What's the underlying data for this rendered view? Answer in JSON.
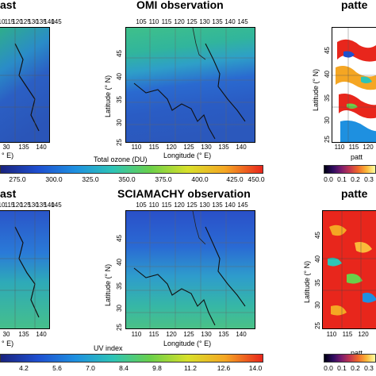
{
  "top_row": {
    "panel_left": {
      "title": "ast",
      "top_ticks": [
        "10",
        "115",
        "120",
        "125",
        "130",
        "135",
        "140",
        "145"
      ],
      "bottom_ticks": [
        "30",
        "135",
        "140"
      ],
      "bottom_label": "° E)"
    },
    "panel_center": {
      "title": "OMI observation",
      "top_ticks": [
        "105",
        "110",
        "115",
        "120",
        "125",
        "130",
        "135",
        "140",
        "145"
      ],
      "bottom_ticks": [
        "110",
        "115",
        "120",
        "125",
        "130",
        "135",
        "140"
      ],
      "left_ticks": [
        "45",
        "40",
        "35",
        "30",
        "25"
      ],
      "xlabel": "Longitude (° E)",
      "ylabel": "Latitude (° N)"
    },
    "panel_right": {
      "title": "patte",
      "bottom_ticks": [
        "110",
        "115",
        "120"
      ],
      "left_ticks": [
        "45",
        "40",
        "35",
        "30",
        "25"
      ],
      "ylabel": "Latitude (° N)",
      "xlabel": "patt"
    },
    "colorbar_label": "Total ozone (DU)",
    "colorbar_ticks": [
      "275.0",
      "300.0",
      "325.0",
      "350.0",
      "375.0",
      "400.0",
      "425.0",
      "450.0"
    ],
    "right_colorbar_ticks": [
      "0.0",
      "0.1",
      "0.2",
      "0.3"
    ]
  },
  "bottom_row": {
    "panel_left": {
      "title": "ast",
      "top_ticks": [
        "10",
        "115",
        "120",
        "125",
        "130",
        "135",
        "140",
        "145"
      ],
      "bottom_ticks": [
        "30",
        "135",
        "140"
      ],
      "bottom_label": "° E)"
    },
    "panel_center": {
      "title": "SCIAMACHY observation",
      "top_ticks": [
        "105",
        "110",
        "115",
        "120",
        "125",
        "130",
        "135",
        "140",
        "145"
      ],
      "bottom_ticks": [
        "110",
        "115",
        "120",
        "125",
        "130",
        "135",
        "140"
      ],
      "left_ticks": [
        "45",
        "40",
        "35",
        "30",
        "25"
      ],
      "xlabel": "Longitude (° E)",
      "ylabel": "Latitude (° N)"
    },
    "panel_right": {
      "title": "patte",
      "bottom_ticks": [
        "110",
        "115",
        "120"
      ],
      "left_ticks": [
        "45",
        "40",
        "35",
        "30",
        "25"
      ],
      "ylabel": "Latitude (° N)",
      "xlabel": "patt"
    },
    "colorbar_label": "UV index",
    "colorbar_ticks": [
      "4.2",
      "5.6",
      "7.0",
      "8.4",
      "9.8",
      "11.2",
      "12.6",
      "14.0"
    ],
    "right_colorbar_ticks": [
      "0.0",
      "0.1",
      "0.2",
      "0.3"
    ]
  },
  "colors": {
    "low": "#2b5fc4",
    "mid": "#35b59a",
    "high": "#d61f1f",
    "jet_gradient": [
      "#1a237e",
      "#1e4fd0",
      "#1e90e0",
      "#2ec4b6",
      "#6ad04a",
      "#d8e02a",
      "#f5a623",
      "#e8261c"
    ],
    "pattern_gradient": [
      "#000010",
      "#2c0b5e",
      "#7a1c6d",
      "#c2364f",
      "#f06a2a",
      "#fbb93a",
      "#fcffa4"
    ]
  }
}
